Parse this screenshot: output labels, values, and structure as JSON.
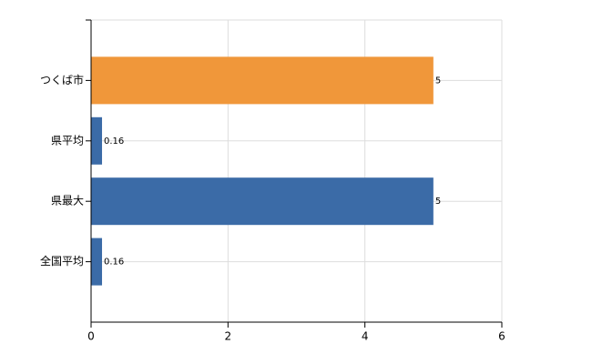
{
  "chart_data": {
    "type": "hbar",
    "categories": [
      "つくば市",
      "県平均",
      "県最大",
      "全国平均"
    ],
    "values": [
      5,
      0.16,
      5,
      0.16
    ],
    "colors": [
      "#f0973a",
      "#3b6ba7",
      "#3b6ba7",
      "#3b6ba7"
    ],
    "xlim": [
      0,
      6
    ],
    "xticks": [
      0,
      2,
      4,
      6
    ],
    "grid": true
  }
}
